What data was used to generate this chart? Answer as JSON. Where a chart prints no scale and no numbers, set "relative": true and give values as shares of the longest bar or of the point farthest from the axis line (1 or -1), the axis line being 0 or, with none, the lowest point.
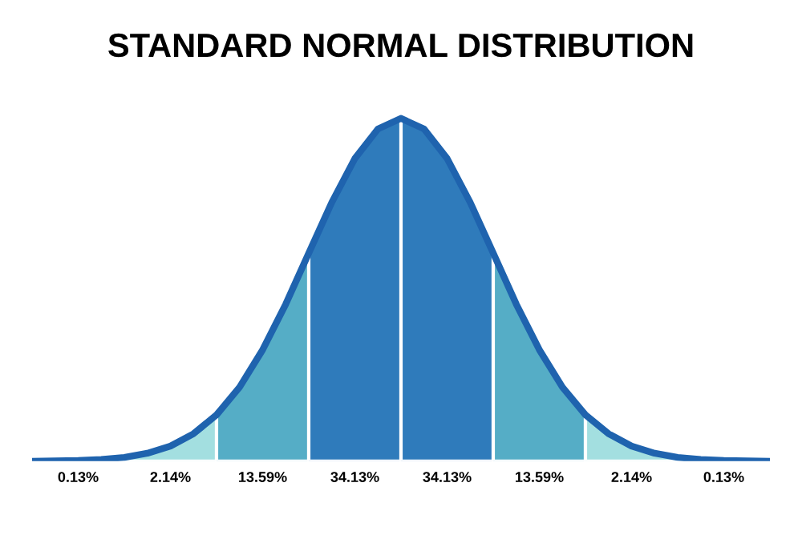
{
  "chart_data": {
    "type": "area",
    "title": "STANDARD NORMAL DISTRIBUTION",
    "relative": true,
    "tick_labels": false,
    "legend": false,
    "categories": [
      null,
      null,
      null,
      null,
      null,
      null,
      null,
      null,
      null,
      null,
      null,
      null,
      null,
      null,
      null,
      null,
      null,
      null,
      null,
      null,
      null,
      null,
      null,
      null,
      null,
      null,
      null,
      null,
      null,
      null,
      null,
      null,
      null
    ],
    "series": [
      {
        "name": "0.13%",
        "color": "#bfe9e9",
        "values": [
          0.0,
          0.001,
          0.002,
          0.005,
          0.011,
          null,
          null,
          null,
          null,
          null,
          null,
          null,
          null,
          null,
          null,
          null,
          null,
          null,
          null,
          null,
          null,
          null,
          null,
          null,
          null,
          null,
          null,
          null,
          null,
          null,
          null,
          null,
          null
        ]
      },
      {
        "name": "2.14%",
        "color": "#a3dfe0",
        "values": [
          null,
          null,
          null,
          null,
          0.011,
          0.023,
          0.044,
          0.08,
          0.135,
          null,
          null,
          null,
          null,
          null,
          null,
          null,
          null,
          null,
          null,
          null,
          null,
          null,
          null,
          null,
          null,
          null,
          null,
          null,
          null,
          null,
          null,
          null,
          null
        ]
      },
      {
        "name": "13.59%",
        "color": "#55adc6",
        "values": [
          null,
          null,
          null,
          null,
          null,
          null,
          null,
          null,
          0.135,
          0.216,
          0.325,
          0.458,
          0.607,
          null,
          null,
          null,
          null,
          null,
          null,
          null,
          null,
          null,
          null,
          null,
          null,
          null,
          null,
          null,
          null,
          null,
          null,
          null,
          null
        ]
      },
      {
        "name": "34.13%",
        "color": "#2f7bbb",
        "values": [
          null,
          null,
          null,
          null,
          null,
          null,
          null,
          null,
          null,
          null,
          null,
          null,
          0.607,
          0.755,
          0.883,
          0.969,
          1,
          null,
          null,
          null,
          null,
          null,
          null,
          null,
          null,
          null,
          null,
          null,
          null,
          null,
          null,
          null,
          null
        ]
      },
      {
        "name": "34.13%",
        "color": "#2f7bbb",
        "values": [
          null,
          null,
          null,
          null,
          null,
          null,
          null,
          null,
          null,
          null,
          null,
          null,
          null,
          null,
          null,
          null,
          1,
          0.969,
          0.883,
          0.755,
          0.607,
          null,
          null,
          null,
          null,
          null,
          null,
          null,
          null,
          null,
          null,
          null,
          null
        ]
      },
      {
        "name": "13.59%",
        "color": "#55adc6",
        "values": [
          null,
          null,
          null,
          null,
          null,
          null,
          null,
          null,
          null,
          null,
          null,
          null,
          null,
          null,
          null,
          null,
          null,
          null,
          null,
          null,
          0.607,
          0.458,
          0.325,
          0.216,
          0.135,
          null,
          null,
          null,
          null,
          null,
          null,
          null,
          null
        ]
      },
      {
        "name": "2.14%",
        "color": "#a3dfe0",
        "values": [
          null,
          null,
          null,
          null,
          null,
          null,
          null,
          null,
          null,
          null,
          null,
          null,
          null,
          null,
          null,
          null,
          null,
          null,
          null,
          null,
          null,
          null,
          null,
          null,
          0.135,
          0.08,
          0.044,
          0.023,
          0.011,
          null,
          null,
          null,
          null
        ]
      },
      {
        "name": "0.13%",
        "color": "#bfe9e9",
        "values": [
          null,
          null,
          null,
          null,
          null,
          null,
          null,
          null,
          null,
          null,
          null,
          null,
          null,
          null,
          null,
          null,
          null,
          null,
          null,
          null,
          null,
          null,
          null,
          null,
          null,
          null,
          null,
          null,
          0.011,
          0.005,
          0.002,
          0.001,
          0.0
        ]
      },
      {
        "type": "line",
        "color": "#1f63ae",
        "values": [
          0.0,
          0.001,
          0.002,
          0.005,
          0.011,
          0.023,
          0.044,
          0.08,
          0.135,
          0.216,
          0.325,
          0.458,
          0.607,
          0.755,
          0.883,
          0.969,
          1,
          0.969,
          0.883,
          0.755,
          0.607,
          0.458,
          0.325,
          0.216,
          0.135,
          0.08,
          0.044,
          0.023,
          0.011,
          0.005,
          0.002,
          0.001,
          0.0
        ]
      }
    ]
  }
}
